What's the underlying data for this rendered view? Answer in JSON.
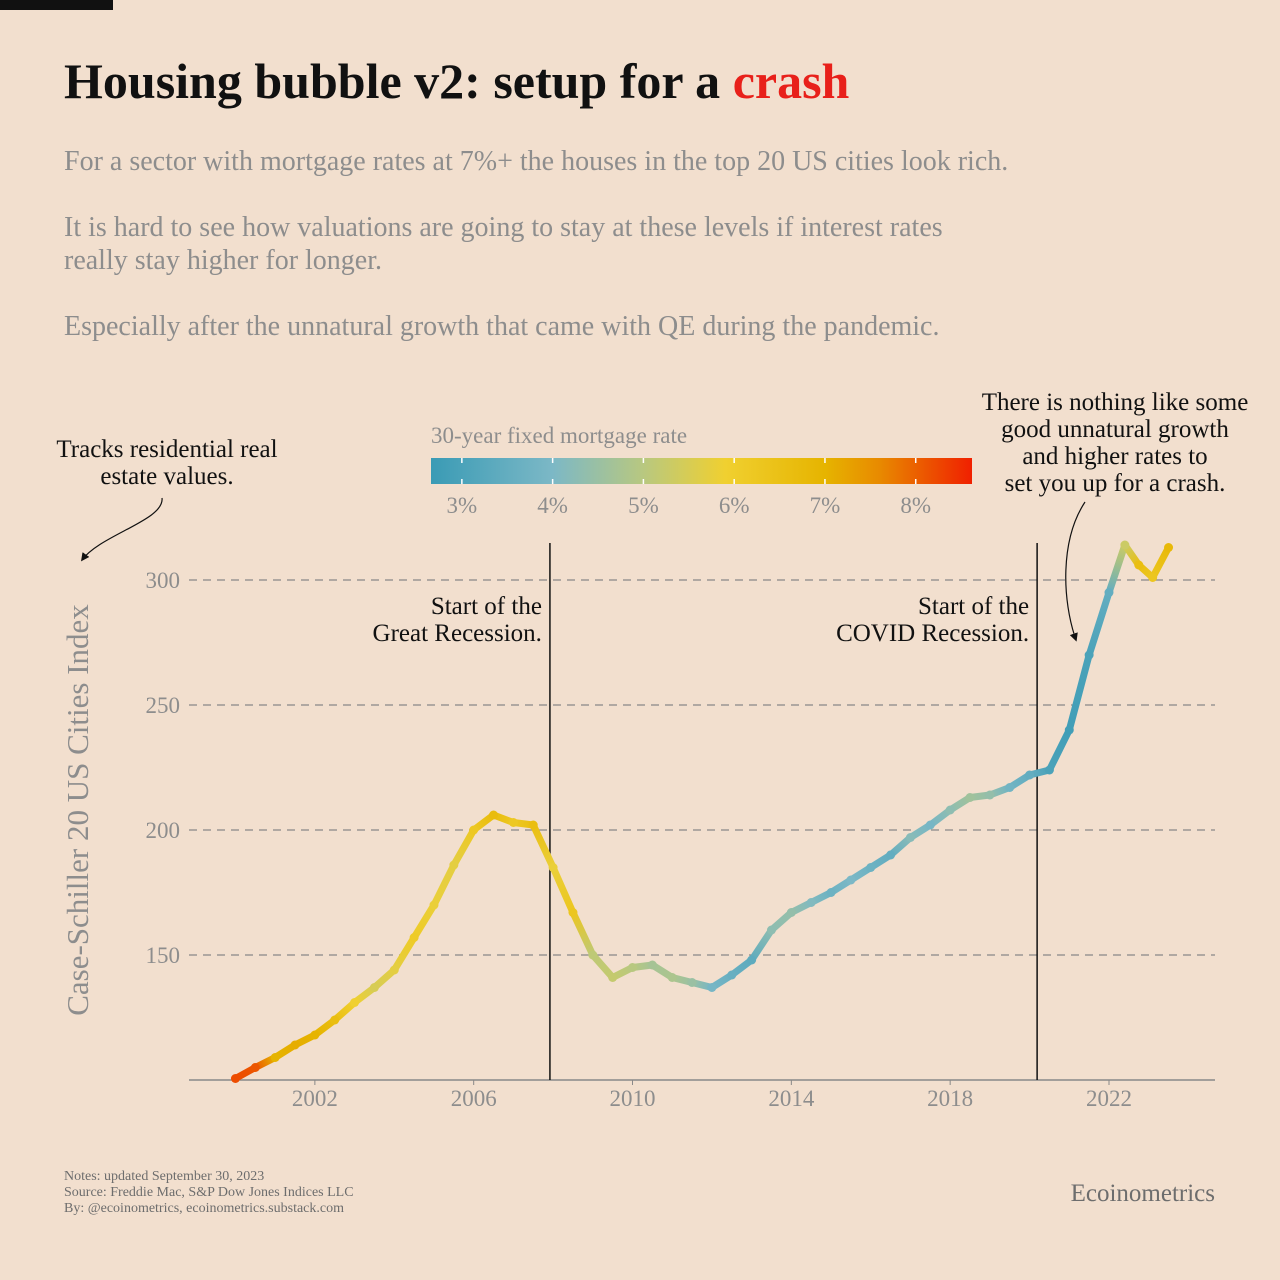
{
  "chart_data": {
    "type": "line",
    "title": "Housing bubble v2: setup for a",
    "title_highlight": "crash",
    "subtitle": [
      [
        "For a sector with mortgage rates at 7%+ the houses in the top 20 US cities look rich."
      ],
      [
        "It is hard to see how valuations are going to stay at these levels if interest rates",
        "really stay higher for longer."
      ],
      [
        "Especially after the unnatural growth that came with QE during the pandemic."
      ]
    ],
    "y_label": "Case-Schiller 20 US Cities Index",
    "colorbar": {
      "title": "30-year fixed mortgage rate",
      "lim": [
        2.66,
        8.62
      ],
      "ticks": [
        {
          "value": 3,
          "label": "3%"
        },
        {
          "value": 4,
          "label": "4%"
        },
        {
          "value": 5,
          "label": "5%"
        },
        {
          "value": 6,
          "label": "6%"
        },
        {
          "value": 7,
          "label": "7%"
        },
        {
          "value": 8,
          "label": "8%"
        }
      ],
      "stops": [
        {
          "value": 2.66,
          "color": "#3a9bb5"
        },
        {
          "value": 4.0,
          "color": "#7cb8c6"
        },
        {
          "value": 5.0,
          "color": "#b8c880"
        },
        {
          "value": 5.9,
          "color": "#f0d030"
        },
        {
          "value": 7.0,
          "color": "#e6b400"
        },
        {
          "value": 7.6,
          "color": "#e88a00"
        },
        {
          "value": 8.62,
          "color": "#f02000"
        }
      ]
    },
    "x": [
      2000.0,
      2000.5,
      2001.0,
      2001.5,
      2002.0,
      2002.5,
      2003.0,
      2003.5,
      2004.0,
      2004.5,
      2005.0,
      2005.5,
      2006.0,
      2006.5,
      2007.0,
      2007.5,
      2008.0,
      2008.5,
      2009.0,
      2009.5,
      2010.0,
      2010.5,
      2011.0,
      2011.5,
      2012.0,
      2012.5,
      2013.0,
      2013.5,
      2014.0,
      2014.5,
      2015.0,
      2015.5,
      2016.0,
      2016.5,
      2017.0,
      2017.5,
      2018.0,
      2018.5,
      2019.0,
      2019.5,
      2020.0,
      2020.5,
      2021.0,
      2021.5,
      2022.0,
      2022.4,
      2022.75,
      2023.1,
      2023.5
    ],
    "series": [
      {
        "values": [
          100.6,
          105,
          109,
          114,
          118,
          124,
          131,
          137,
          144,
          157,
          170,
          186,
          200,
          206,
          203,
          202,
          185,
          167,
          150,
          141,
          145,
          146,
          141,
          139,
          137,
          142,
          148,
          160,
          167,
          171,
          175,
          180,
          185,
          190,
          197,
          202,
          208,
          213,
          214,
          217,
          222,
          224,
          240,
          270,
          295,
          314,
          306,
          301,
          313
        ],
        "rates": [
          8.2,
          8.1,
          7.0,
          7.1,
          7.0,
          6.6,
          5.9,
          5.5,
          5.7,
          6.1,
          5.8,
          5.7,
          6.2,
          6.7,
          6.2,
          6.6,
          5.8,
          6.3,
          5.1,
          5.2,
          5.0,
          4.7,
          4.8,
          4.5,
          3.9,
          3.6,
          3.4,
          4.3,
          4.4,
          4.1,
          3.7,
          4.0,
          3.7,
          3.5,
          4.2,
          3.9,
          4.3,
          4.6,
          4.4,
          3.8,
          3.5,
          3.0,
          2.8,
          3.0,
          3.5,
          5.3,
          6.6,
          6.3,
          6.8
        ]
      }
    ],
    "xlim": [
      1998.83,
      2024.67
    ],
    "xticks": [
      2002,
      2006,
      2010,
      2014,
      2018,
      2022
    ],
    "ylim": [
      100,
      316
    ],
    "yticks": [
      150,
      200,
      250,
      300
    ],
    "grid": true,
    "vlines": [
      {
        "x": 2007.92,
        "lines": [
          "Start of the",
          "Great Recession."
        ]
      },
      {
        "x": 2020.19,
        "lines": [
          "Start of the",
          "COVID Recession."
        ]
      }
    ],
    "annotations": [
      {
        "lines": [
          "Tracks residential real",
          "estate values."
        ]
      },
      {
        "lines": [
          "There is nothing like some",
          "good unnatural growth",
          "and higher rates to",
          "set you up for a crash."
        ]
      }
    ],
    "notes": [
      "Notes: updated September 30, 2023",
      "Source: Freddie Mac, S&P Dow Jones Indices LLC",
      "By: @ecoinometrics, ecoinometrics.substack.com"
    ],
    "brand": "Ecoinometrics"
  }
}
